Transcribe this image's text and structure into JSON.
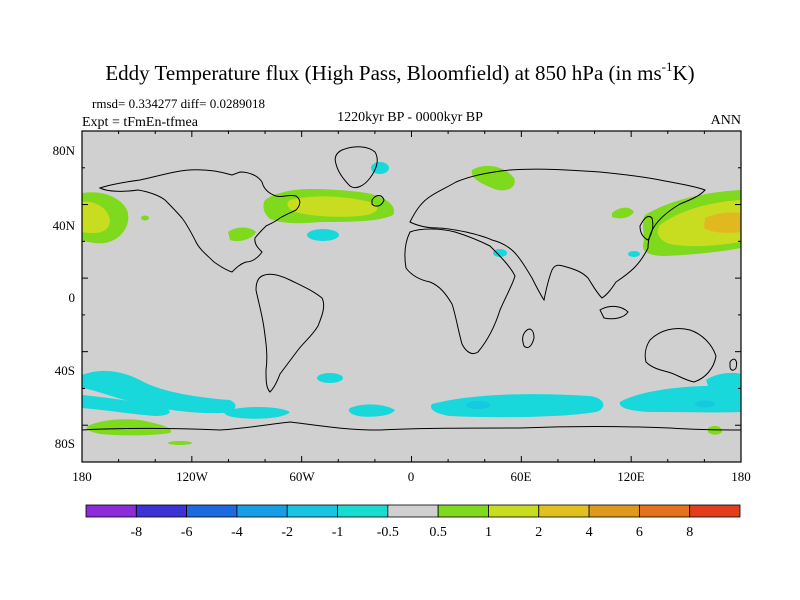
{
  "figure": {
    "title_main": "Eddy Temperature flux (High Pass, Bloomfield) at 850 hPa (in ms",
    "title_sup": "-1",
    "title_end": "K)",
    "stats": "rmsd= 0.334277  diff= 0.0289018",
    "expt": "Expt = tFmEn-tfmea",
    "period": "1220kyr BP - 0000kyr BP",
    "season": "ANN"
  },
  "axes": {
    "lat_labels": [
      "80N",
      "40N",
      "0",
      "40S",
      "80S"
    ],
    "lon_labels": [
      "180",
      "120W",
      "60W",
      "0",
      "60E",
      "120E",
      "180"
    ]
  },
  "colorbar": {
    "colors": [
      "#8d2bdb",
      "#3c33d6",
      "#1d6ae0",
      "#169ee6",
      "#19c4e3",
      "#18dcd0",
      "#d0d0d0",
      "#7fd91d",
      "#c8dd1f",
      "#e2c01e",
      "#e09a1b",
      "#e4711b",
      "#e23d1c"
    ],
    "labels": [
      "-8",
      "-6",
      "-4",
      "-2",
      "-1",
      "-0.5",
      "0.5",
      "1",
      "2",
      "4",
      "6",
      "8"
    ]
  },
  "colors": {
    "background_field": "#d0d0d0",
    "cyan": "#19d8dc",
    "green": "#7fd91d",
    "yellow": "#c8dd1f",
    "orange": "#e2b820"
  }
}
